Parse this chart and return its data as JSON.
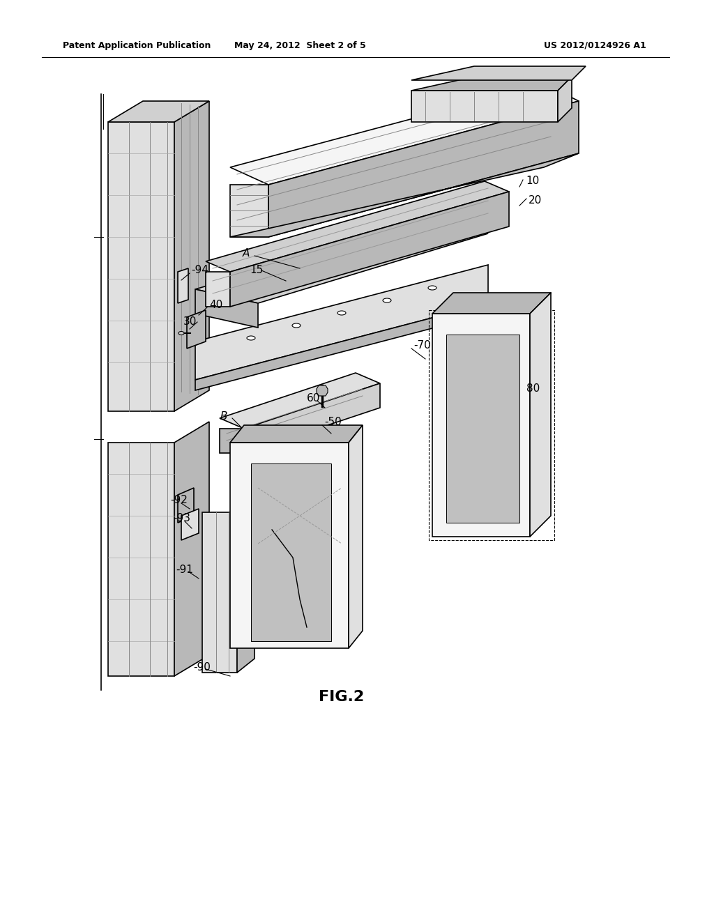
{
  "title_left": "Patent Application Publication",
  "title_mid": "May 24, 2012  Sheet 2 of 5",
  "title_right": "US 2012/0124926 A1",
  "fig_label": "FIG.2",
  "bg_color": "#ffffff",
  "line_color": "#000000",
  "gray1": "#d0d0d0",
  "gray2": "#b8b8b8",
  "gray3": "#e0e0e0",
  "gray4": "#c0c0c0",
  "white": "#f5f5f5"
}
